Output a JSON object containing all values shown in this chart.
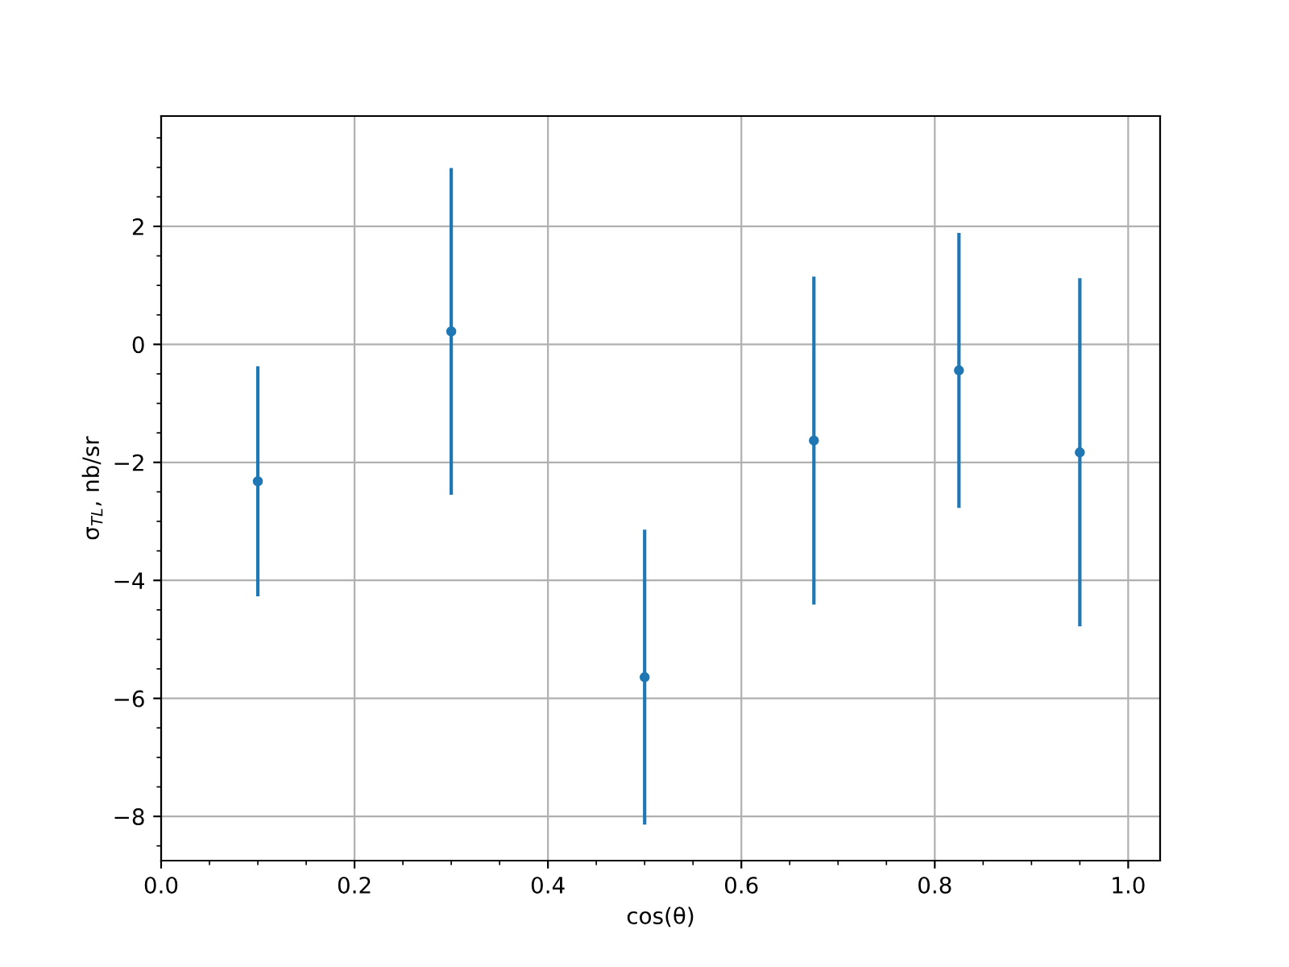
{
  "chart_data": {
    "type": "scatter",
    "xlabel": "cos(θ)",
    "ylabel": "σ$_{TL}$, nb/sr",
    "x": [
      0.1,
      0.3,
      0.5,
      0.675,
      0.825,
      0.95
    ],
    "series": [
      {
        "color": "#1f77b4",
        "values": [
          -2.32,
          0.22,
          -5.64,
          -1.63,
          -0.44,
          -1.83
        ],
        "errors": [
          1.95,
          2.77,
          2.5,
          2.78,
          2.33,
          2.95
        ]
      }
    ],
    "marker": "circle",
    "xlim": [
      0,
      1.033
    ],
    "ylim": [
      -8.75,
      3.87
    ],
    "xticks": [
      {
        "value": 0,
        "label": "0.0"
      },
      0.2,
      0.4,
      0.6,
      0.8,
      {
        "value": 1,
        "label": "1.0"
      }
    ],
    "yticks": [
      {
        "value": -8,
        "label": "−8"
      },
      {
        "value": -6,
        "label": "−6"
      },
      {
        "value": -4,
        "label": "−4"
      },
      {
        "value": -2,
        "label": "−2"
      },
      0,
      2
    ],
    "grid": true
  }
}
